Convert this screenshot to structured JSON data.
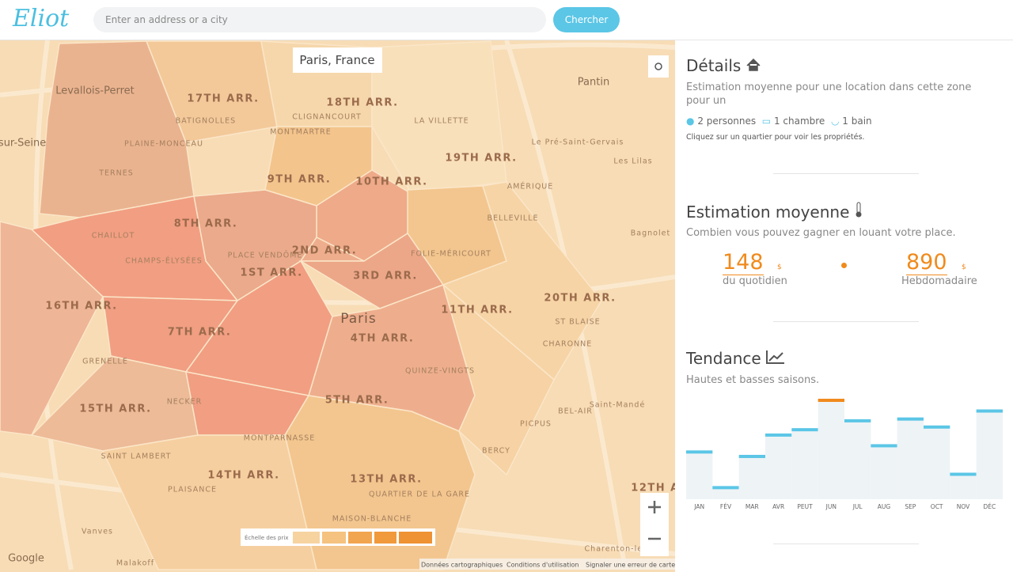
{
  "header": {
    "logo": "Eliot",
    "search_placeholder": "Enter an address or a city",
    "search_button": "Chercher"
  },
  "map": {
    "location": "Paris, France",
    "labels": [
      "Levallois-Perret",
      "17TH ARR.",
      "BATIGNOLLES",
      "18TH ARR.",
      "CLIGNANCOURT",
      "MONTMARTRE",
      "LA VILLETTE",
      "Pantin",
      "19TH ARR.",
      "PLAINE-MONCEAU",
      "TERNES",
      "y-sur-Seine",
      "9TH ARR.",
      "10TH ARR.",
      "AMÉRIQUE",
      "BELLEVILLE",
      "Le Pré-Saint-Gervais",
      "Les Lilas",
      "8TH ARR.",
      "CHAILLOT",
      "CHAMPS-ÉLYSÉES",
      "PLACE VENDÔME",
      "2ND ARR.",
      "FOLIE-MÉRICOURT",
      "Bagnolet",
      "1ST ARR.",
      "3RD ARR.",
      "16TH ARR.",
      "20TH ARR.",
      "11TH ARR.",
      "Paris",
      "7TH ARR.",
      "4TH ARR.",
      "ST BLAISE",
      "CHARONNE",
      "GRENELLE",
      "QUINZE-VINGTS",
      "5TH ARR.",
      "NECKER",
      "15TH ARR.",
      "BEL-AIR",
      "Saint-Mandé",
      "PICPUS",
      "MONTPARNASSE",
      "SAINT LAMBERT",
      "BERCY",
      "14TH ARR.",
      "13TH ARR.",
      "PLAISANCE",
      "QUARTIER DE LA GARE",
      "MAISON-BLANCHE",
      "12TH A",
      "Vanves",
      "Malakoff",
      "Charenton-le-Pont",
      "Google"
    ],
    "price_scale": "Échelle des prix",
    "footer_links": [
      "Données cartographiques",
      "Conditions d'utilisation",
      "Signaler une erreur de carte"
    ]
  },
  "details": {
    "title": "Détails",
    "description": "Estimation moyenne pour une location dans cette zone pour un",
    "persons": "2 personnes",
    "bedrooms": "1 chambre",
    "bathrooms": "1 bain",
    "hint": "Cliquez sur un quartier pour voir les propriétés."
  },
  "estimate": {
    "title": "Estimation moyenne",
    "subtitle": "Combien vous pouvez gagner en louant votre place.",
    "daily": {
      "value": 148,
      "currency": "$",
      "label": "du quotidien"
    },
    "weekly": {
      "value": 890,
      "currency": "$",
      "label": "Hebdomadaire"
    }
  },
  "trend": {
    "type": "bar",
    "title": "Tendance",
    "subtitle": "Hautes et basses saisons.",
    "categories": [
      "JAN",
      "FÉV",
      "MAR",
      "AVR",
      "PEUT",
      "JUN",
      "JUL",
      "AUG",
      "SEP",
      "OCT",
      "NOV",
      "DÉC"
    ],
    "values": [
      53,
      13,
      48,
      72,
      78,
      111,
      88,
      60,
      90,
      81,
      28,
      99
    ],
    "color": "#5bc6e6",
    "highlight": "JUN",
    "highlight_color": "#f08a1c"
  }
}
